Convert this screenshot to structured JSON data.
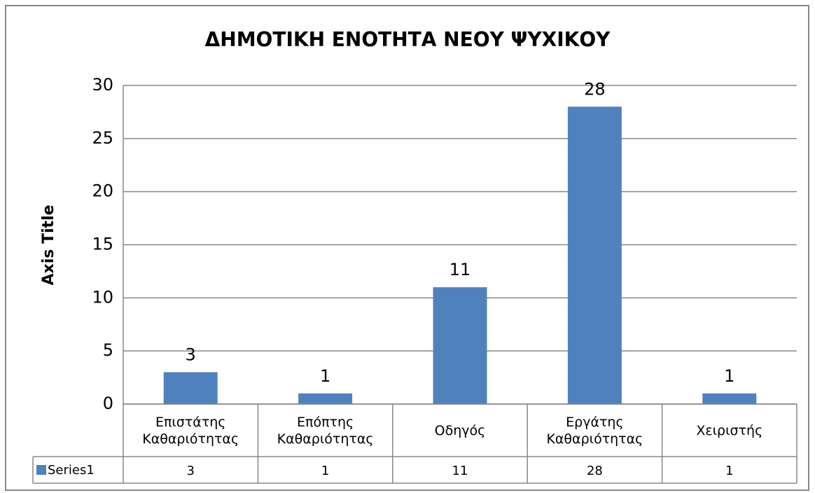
{
  "chart_data": {
    "type": "bar",
    "title": "ΔΗΜΟΤΙΚΗ ΕΝΟΤΗΤΑ ΝΕΟΥ ΨΥΧΙΚΟΥ",
    "y_label": "Axis Title",
    "categories": [
      "Επιστάτης Καθαριότητας",
      "Επόπτης Καθαριότητας",
      "Οδηγός",
      "Εργάτης Καθαριότητας",
      "Χειριστής"
    ],
    "series": [
      {
        "name": "Series1",
        "color": "#4f81bd",
        "values": [
          3,
          1,
          11,
          28,
          1
        ]
      }
    ],
    "ylim": [
      0,
      30
    ],
    "yticks": [
      0,
      5,
      10,
      15,
      20,
      25,
      30
    ],
    "grid": true,
    "data_table": true
  }
}
